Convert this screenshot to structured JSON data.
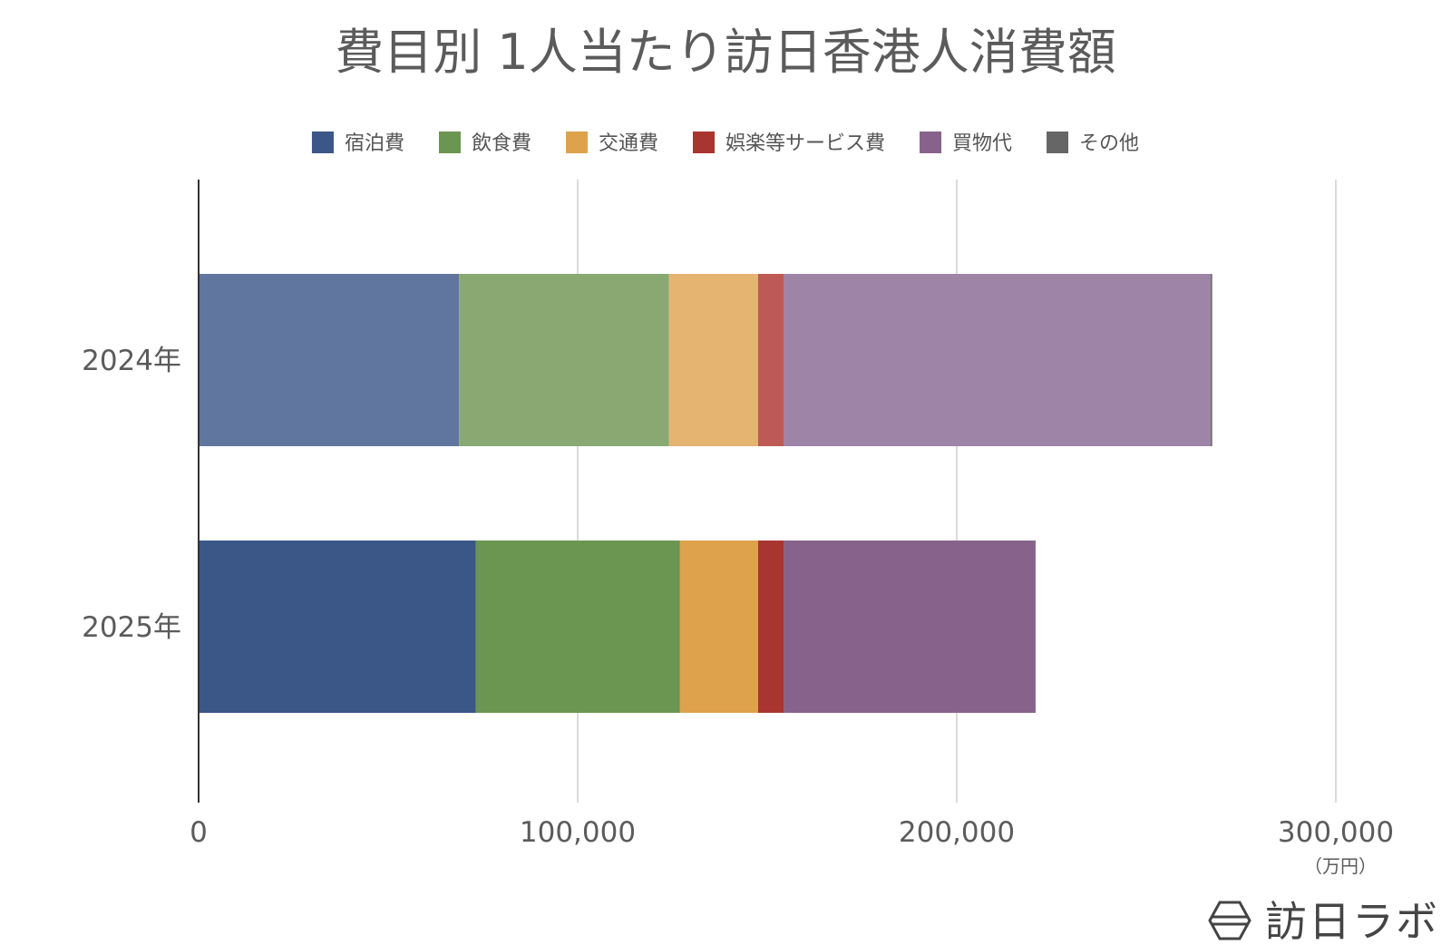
{
  "chart_data": {
    "type": "bar",
    "orientation": "horizontal",
    "stacked": true,
    "title": "費目別 1人当たり訪日香港人消費額",
    "categories": [
      "2024年",
      "2025年"
    ],
    "series": [
      {
        "name": "宿泊費",
        "values": [
          68700,
          73100
        ],
        "colors": [
          "#60769e",
          "#3a5787"
        ]
      },
      {
        "name": "飲食費",
        "values": [
          55400,
          53900
        ],
        "colors": [
          "#89a872",
          "#6b9651"
        ]
      },
      {
        "name": "交通費",
        "values": [
          23500,
          20600
        ],
        "colors": [
          "#e4b470",
          "#dea24c"
        ]
      },
      {
        "name": "娯楽等サービス費",
        "values": [
          6800,
          6800
        ],
        "colors": [
          "#bd5a55",
          "#a93531"
        ]
      },
      {
        "name": "買物代",
        "values": [
          112500,
          66400
        ],
        "colors": [
          "#9e84a7",
          "#87638c"
        ]
      },
      {
        "name": "その他",
        "values": [
          500,
          0
        ],
        "colors": [
          "#727272",
          "#666666"
        ]
      }
    ],
    "xlim": [
      0,
      320000
    ],
    "xticks": [
      0,
      100000,
      200000,
      300000
    ],
    "xtick_labels": [
      "0",
      "100,000",
      "200,000",
      "300,000"
    ],
    "unit": "（万円）",
    "grid": true,
    "legend": "top-center"
  },
  "legend_swatch_colors": [
    "#3a5787",
    "#6b9651",
    "#dea24c",
    "#a93531",
    "#87638c",
    "#666666"
  ],
  "logo": {
    "text": "訪日ラボ",
    "icon": "hexagon-logo-icon"
  }
}
